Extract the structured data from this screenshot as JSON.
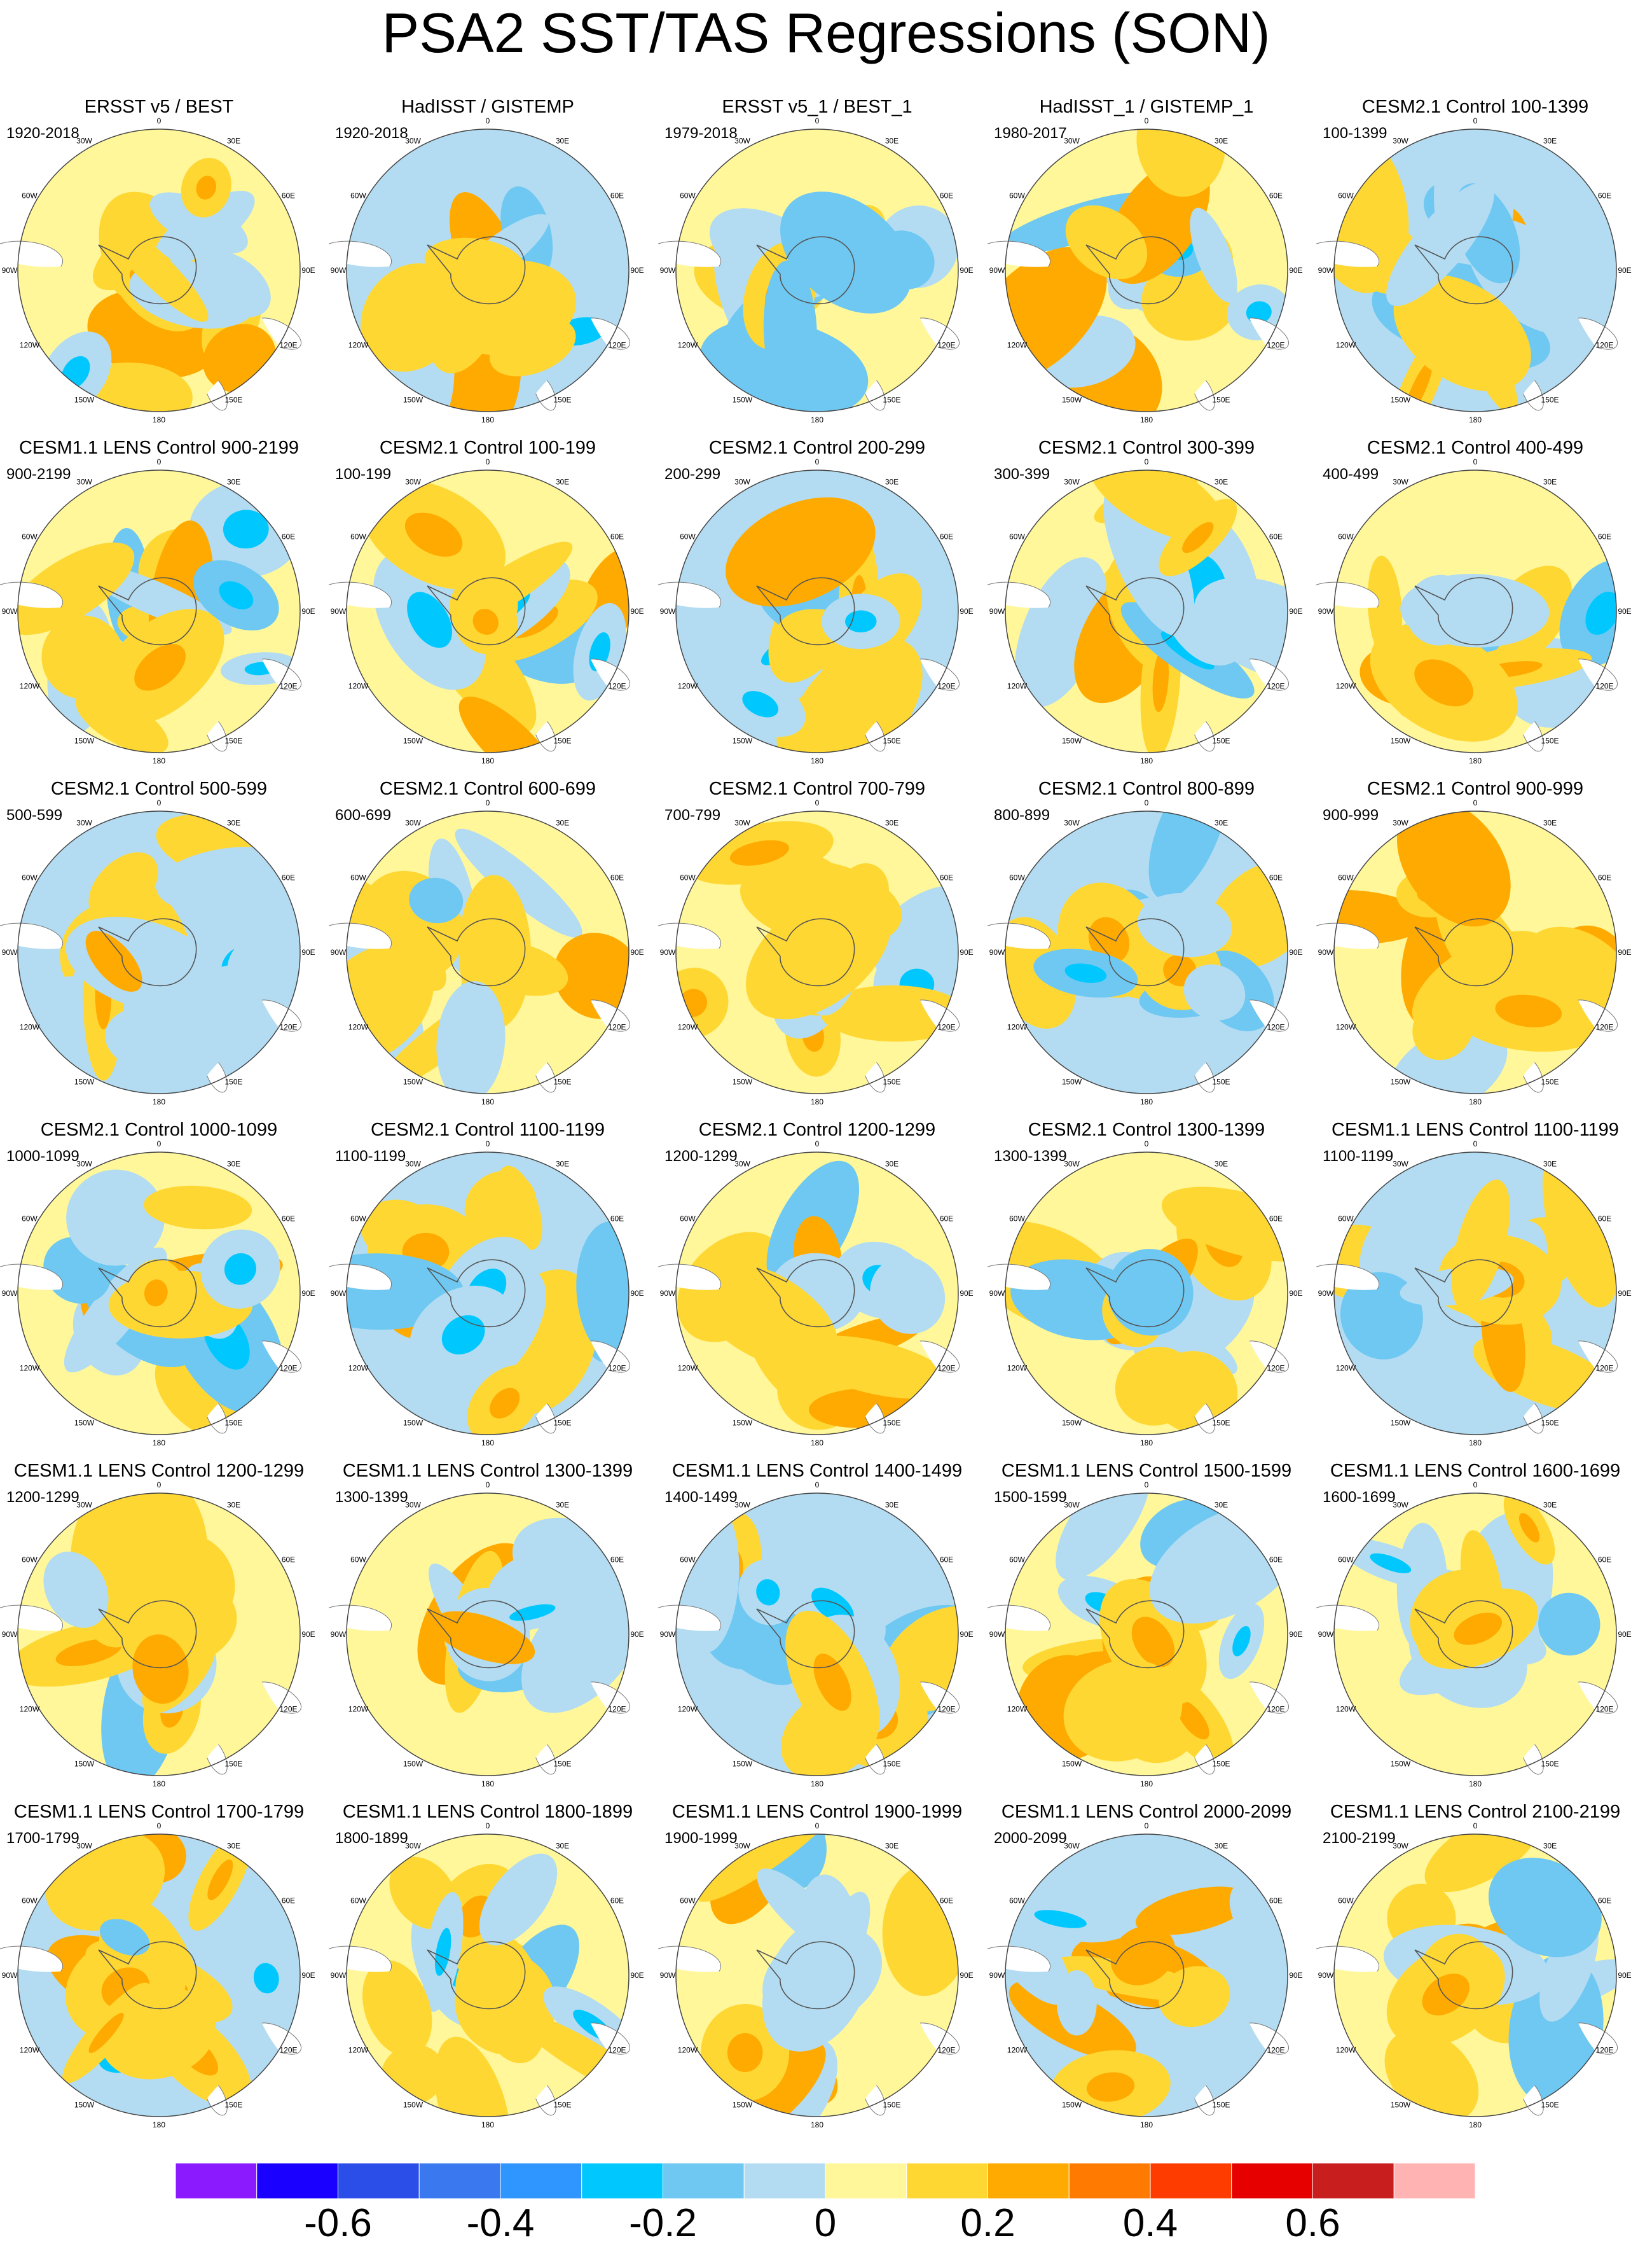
{
  "chart_data": {
    "type": "heatmap",
    "title": "PSA2 SST/TAS Regressions (SON)",
    "projection": "south-polar-stereographic",
    "longitude_labels": [
      "0",
      "30E",
      "60E",
      "90E",
      "120E",
      "150E",
      "180",
      "150W",
      "120W",
      "90W",
      "60W",
      "30W"
    ],
    "panels": [
      {
        "title": "ERSST v5 / BEST",
        "period": "1920-2018"
      },
      {
        "title": "HadISST / GISTEMP",
        "period": "1920-2018"
      },
      {
        "title": "ERSST v5_1 / BEST_1",
        "period": "1979-2018"
      },
      {
        "title": "HadISST_1 / GISTEMP_1",
        "period": "1980-2017"
      },
      {
        "title": "CESM2.1 Control 100-1399",
        "period": "100-1399"
      },
      {
        "title": "CESM1.1 LENS Control 900-2199",
        "period": "900-2199"
      },
      {
        "title": "CESM2.1 Control 100-199",
        "period": "100-199"
      },
      {
        "title": "CESM2.1 Control 200-299",
        "period": "200-299"
      },
      {
        "title": "CESM2.1 Control 300-399",
        "period": "300-399"
      },
      {
        "title": "CESM2.1 Control 400-499",
        "period": "400-499"
      },
      {
        "title": "CESM2.1 Control 500-599",
        "period": "500-599"
      },
      {
        "title": "CESM2.1 Control 600-699",
        "period": "600-699"
      },
      {
        "title": "CESM2.1 Control 700-799",
        "period": "700-799"
      },
      {
        "title": "CESM2.1 Control 800-899",
        "period": "800-899"
      },
      {
        "title": "CESM2.1 Control 900-999",
        "period": "900-999"
      },
      {
        "title": "CESM2.1 Control 1000-1099",
        "period": "1000-1099"
      },
      {
        "title": "CESM2.1 Control 1100-1199",
        "period": "1100-1199"
      },
      {
        "title": "CESM2.1 Control 1200-1299",
        "period": "1200-1299"
      },
      {
        "title": "CESM2.1 Control 1300-1399",
        "period": "1300-1399"
      },
      {
        "title": "CESM1.1 LENS Control 1100-1199",
        "period": "1100-1199"
      },
      {
        "title": "CESM1.1 LENS Control 1200-1299",
        "period": "1200-1299"
      },
      {
        "title": "CESM1.1 LENS Control 1300-1399",
        "period": "1300-1399"
      },
      {
        "title": "CESM1.1 LENS Control 1400-1499",
        "period": "1400-1499"
      },
      {
        "title": "CESM1.1 LENS Control 1500-1599",
        "period": "1500-1599"
      },
      {
        "title": "CESM1.1 LENS Control 1600-1699",
        "period": "1600-1699"
      },
      {
        "title": "CESM1.1 LENS Control 1700-1799",
        "period": "1700-1799"
      },
      {
        "title": "CESM1.1 LENS Control 1800-1899",
        "period": "1800-1899"
      },
      {
        "title": "CESM1.1 LENS Control 1900-1999",
        "period": "1900-1999"
      },
      {
        "title": "CESM1.1 LENS Control 2000-2099",
        "period": "2000-2099"
      },
      {
        "title": "CESM1.1 LENS Control 2100-2199",
        "period": "2100-2199"
      }
    ],
    "colorbar": {
      "levels": [
        -0.7,
        -0.6,
        -0.5,
        -0.4,
        -0.3,
        -0.2,
        -0.1,
        0,
        0.1,
        0.2,
        0.3,
        0.4,
        0.5,
        0.6,
        0.7
      ],
      "colors": [
        "#8c1aff",
        "#1a00ff",
        "#2b4de8",
        "#3a78f0",
        "#2f96ff",
        "#00c8ff",
        "#6fc8f2",
        "#b3dcf2",
        "#fff79a",
        "#ffd733",
        "#ffaa00",
        "#ff7a00",
        "#ff3c00",
        "#e60000",
        "#c81e1e",
        "#ffb3b3"
      ],
      "tick_labels": [
        "-0.6",
        "-0.4",
        "-0.2",
        "0",
        "0.2",
        "0.4",
        "0.6"
      ],
      "tick_values": [
        -0.6,
        -0.4,
        -0.2,
        0,
        0.2,
        0.4,
        0.6
      ]
    }
  }
}
